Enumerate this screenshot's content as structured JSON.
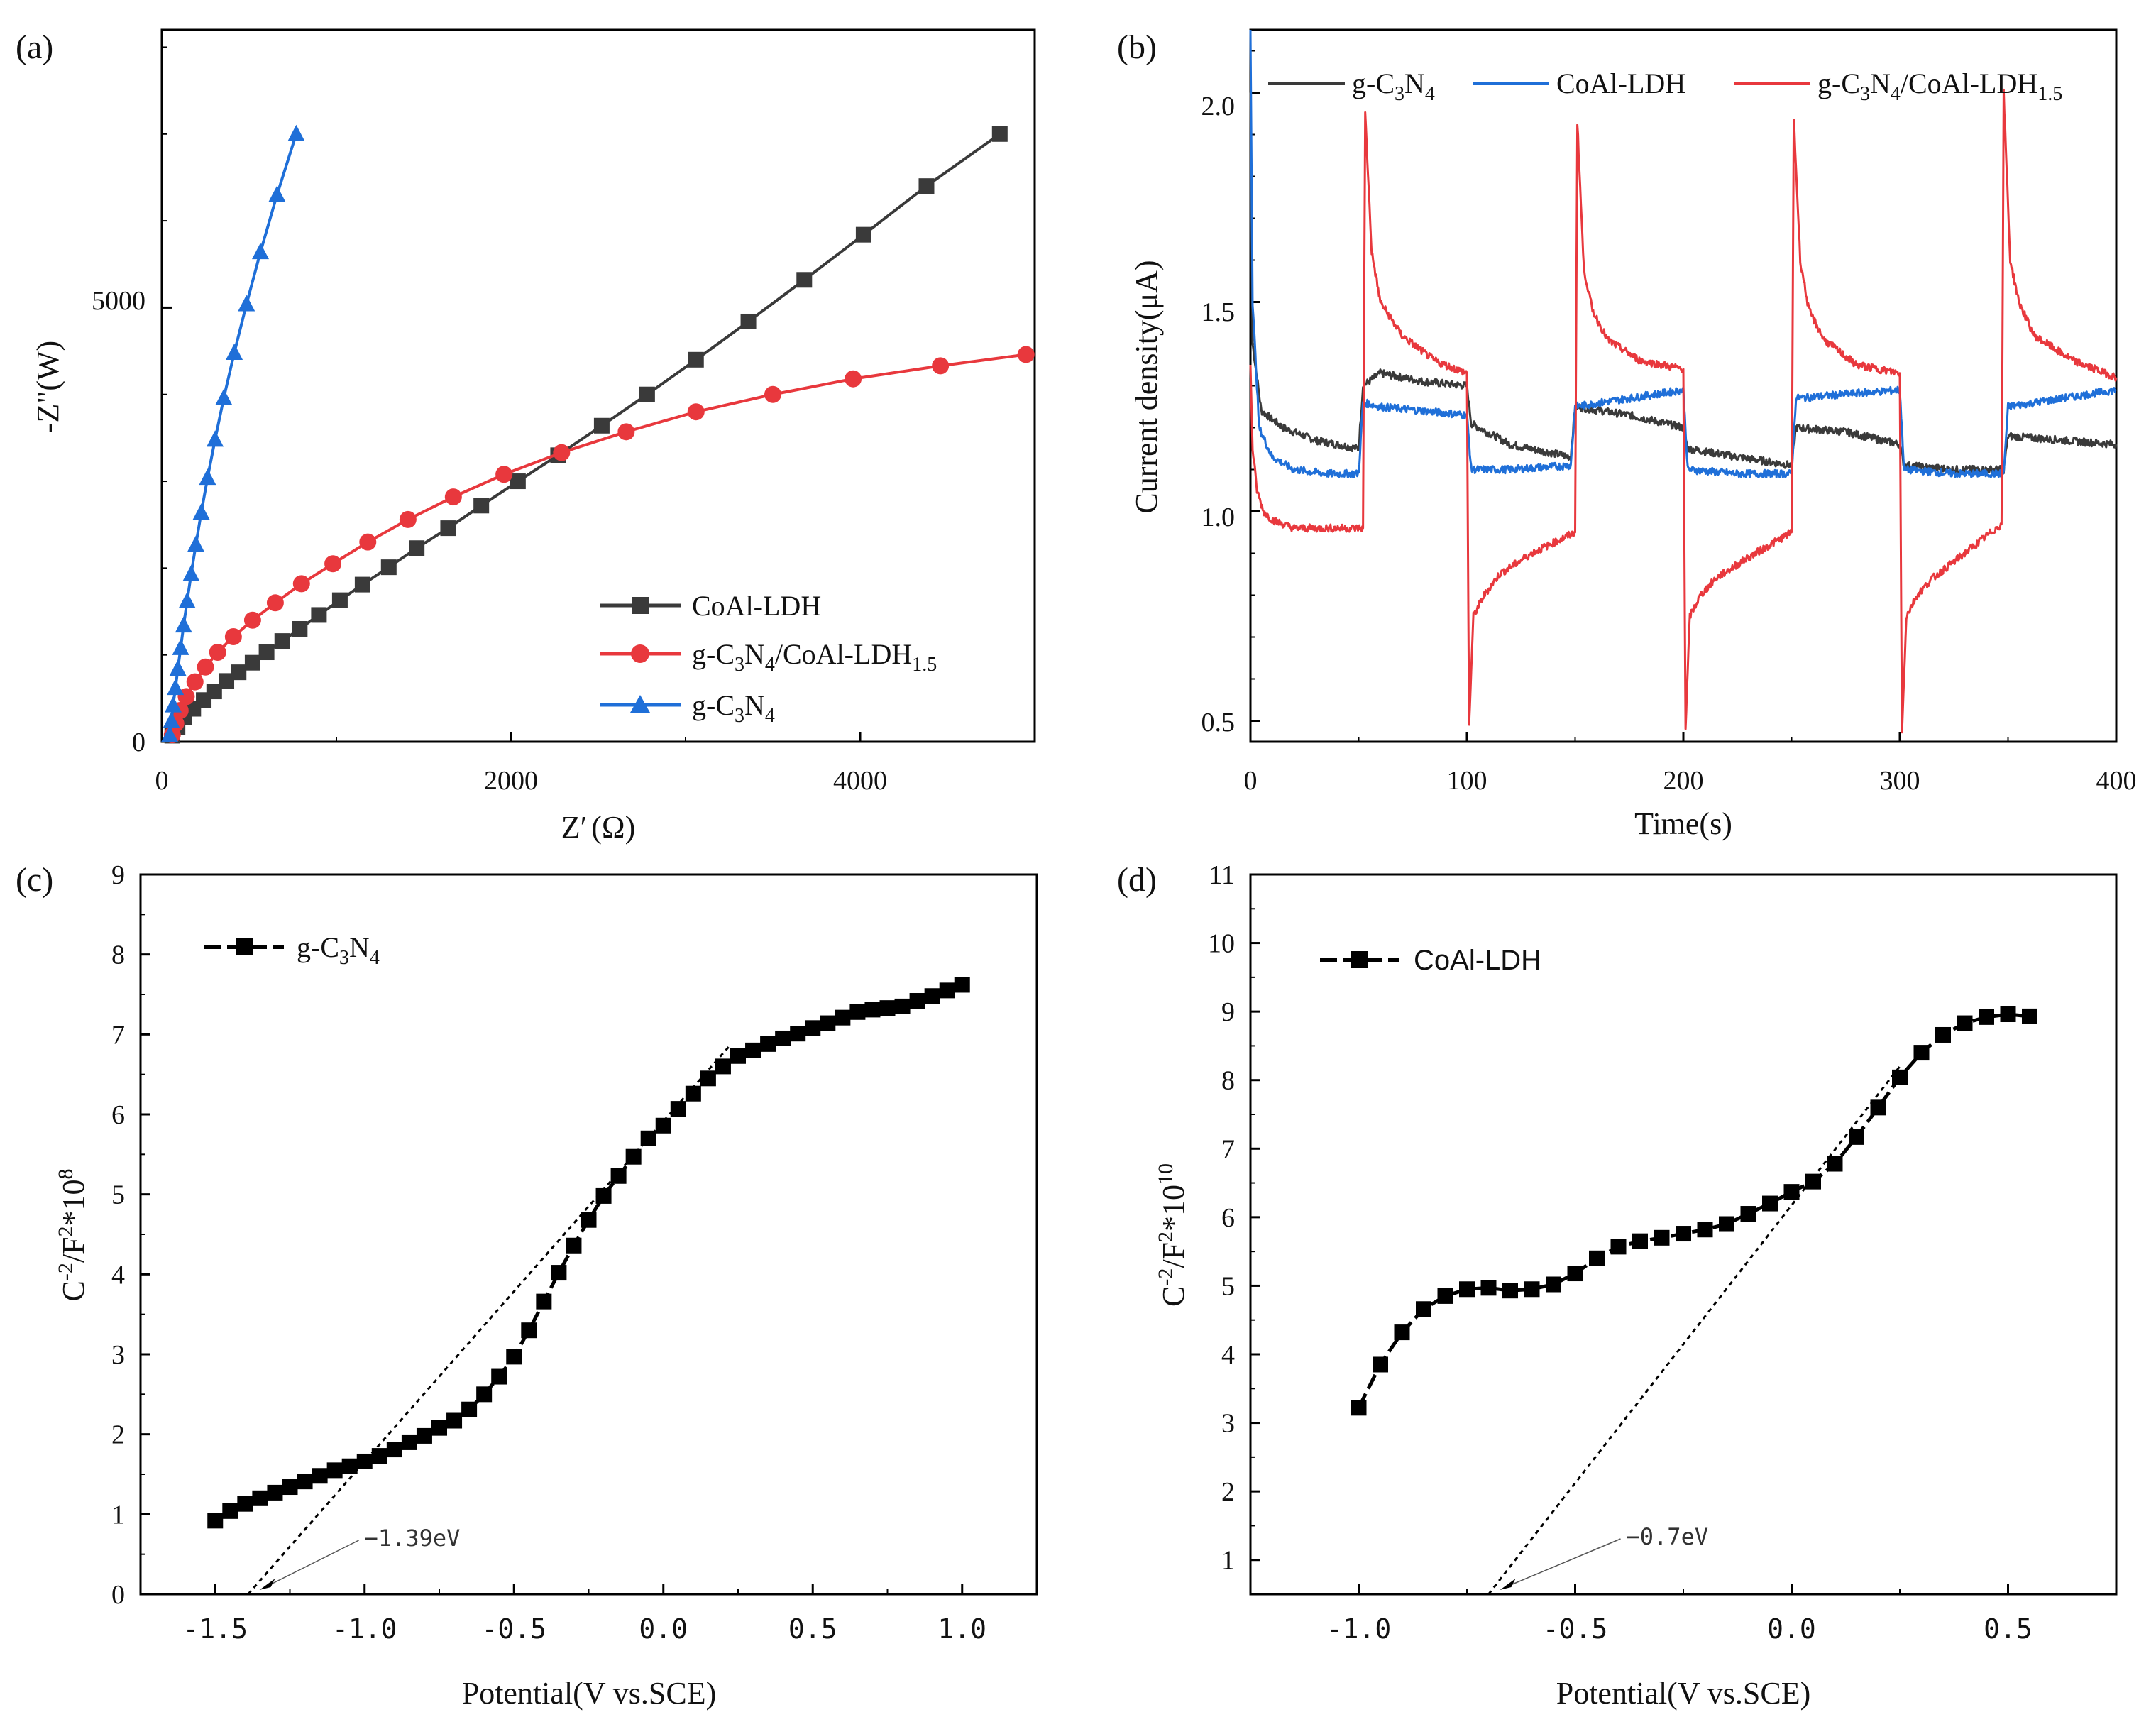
{
  "colors": {
    "black": "#3a3a3a",
    "red": "#e8383d",
    "blue": "#1f6fd8",
    "marker_black": "#000000"
  },
  "chart_data": [
    {
      "panel": "(a)",
      "type": "line",
      "xlabel": "Z′(Ω)",
      "ylabel": "-Z\"(W)",
      "xlim": [
        0,
        5000
      ],
      "ylim": [
        0,
        8200
      ],
      "xticks": [
        0,
        2000,
        4000
      ],
      "yticks": [
        0,
        5000
      ],
      "legend_position": "bottom-right",
      "series": [
        {
          "name": "CoAl-LDH",
          "color": "#3a3a3a",
          "marker": "square",
          "x": [
            60,
            90,
            130,
            180,
            240,
            300,
            370,
            440,
            520,
            600,
            690,
            790,
            900,
            1020,
            1150,
            1300,
            1460,
            1640,
            1830,
            2040,
            2270,
            2520,
            2780,
            3060,
            3360,
            3680,
            4020,
            4380,
            4800
          ],
          "y": [
            70,
            170,
            280,
            380,
            480,
            580,
            700,
            800,
            910,
            1030,
            1160,
            1300,
            1460,
            1630,
            1810,
            2010,
            2230,
            2460,
            2720,
            3000,
            3300,
            3640,
            4000,
            4400,
            4840,
            5320,
            5840,
            6400,
            7000
          ]
        },
        {
          "name": "g-C3N4/CoAl-LDH1.5",
          "color": "#e8383d",
          "marker": "circle",
          "x": [
            60,
            80,
            105,
            140,
            190,
            250,
            320,
            410,
            520,
            650,
            800,
            980,
            1180,
            1410,
            1670,
            1960,
            2290,
            2660,
            3060,
            3500,
            3960,
            4460,
            4950
          ],
          "y": [
            80,
            210,
            360,
            520,
            690,
            860,
            1030,
            1210,
            1400,
            1600,
            1820,
            2050,
            2300,
            2560,
            2820,
            3080,
            3330,
            3570,
            3800,
            4000,
            4180,
            4330,
            4460
          ]
        },
        {
          "name": "g-C3N4",
          "color": "#1f6fd8",
          "marker": "triangle",
          "x": [
            45,
            55,
            65,
            78,
            92,
            108,
            125,
            145,
            168,
            195,
            226,
            262,
            305,
            355,
            415,
            485,
            565,
            660,
            770
          ],
          "y": [
            80,
            240,
            420,
            620,
            840,
            1080,
            1340,
            1620,
            1930,
            2270,
            2640,
            3040,
            3480,
            3960,
            4480,
            5040,
            5640,
            6300,
            7000
          ]
        }
      ]
    },
    {
      "panel": "(b)",
      "type": "line",
      "xlabel": "Time(s)",
      "ylabel": "Current density(μA)",
      "xlim": [
        0,
        400
      ],
      "ylim": [
        0.45,
        2.15
      ],
      "xticks": [
        0,
        100,
        200,
        300,
        400
      ],
      "yticks": [
        0.5,
        1.0,
        1.5,
        2.0
      ],
      "legend_position": "top",
      "light_on_off_times": [
        52,
        100,
        150,
        200,
        250,
        300,
        348
      ],
      "series": [
        {
          "name": "g-C3N4",
          "color": "#3a3a3a",
          "x": [
            0,
            1,
            5,
            15,
            30,
            50,
            52,
            60,
            80,
            100,
            102,
            120,
            148,
            150,
            175,
            200,
            202,
            225,
            250,
            252,
            275,
            300,
            302,
            325,
            348,
            350,
            375,
            400
          ],
          "y": [
            2.0,
            1.4,
            1.24,
            1.2,
            1.17,
            1.15,
            1.3,
            1.33,
            1.31,
            1.3,
            1.21,
            1.16,
            1.13,
            1.25,
            1.23,
            1.2,
            1.15,
            1.13,
            1.11,
            1.2,
            1.19,
            1.16,
            1.11,
            1.1,
            1.1,
            1.18,
            1.17,
            1.16
          ]
        },
        {
          "name": "CoAl-LDH",
          "color": "#1f6fd8",
          "x": [
            0,
            1,
            4,
            10,
            20,
            35,
            50,
            52,
            60,
            80,
            100,
            102,
            120,
            148,
            150,
            175,
            200,
            202,
            225,
            250,
            252,
            275,
            300,
            302,
            325,
            348,
            350,
            375,
            400
          ],
          "y": [
            2.15,
            1.5,
            1.2,
            1.13,
            1.1,
            1.09,
            1.09,
            1.26,
            1.25,
            1.24,
            1.23,
            1.1,
            1.1,
            1.11,
            1.25,
            1.27,
            1.29,
            1.1,
            1.09,
            1.09,
            1.27,
            1.28,
            1.29,
            1.1,
            1.09,
            1.09,
            1.25,
            1.27,
            1.29
          ]
        },
        {
          "name": "g-C3N4/CoAl-LDH1.5",
          "color": "#e8383d",
          "x": [
            0,
            1,
            3,
            6,
            10,
            20,
            52,
            53,
            56,
            60,
            70,
            85,
            100,
            101,
            103,
            108,
            115,
            130,
            150,
            151,
            154,
            158,
            165,
            180,
            200,
            201,
            203,
            208,
            215,
            230,
            250,
            251,
            254,
            258,
            265,
            280,
            300,
            301,
            303,
            308,
            315,
            330,
            347,
            348,
            351,
            355,
            362,
            380,
            400
          ],
          "y": [
            1.35,
            1.15,
            1.05,
            1.0,
            0.98,
            0.96,
            0.96,
            1.95,
            1.62,
            1.5,
            1.42,
            1.36,
            1.33,
            0.49,
            0.75,
            0.8,
            0.85,
            0.9,
            0.95,
            1.93,
            1.58,
            1.48,
            1.41,
            1.36,
            1.34,
            0.48,
            0.75,
            0.8,
            0.84,
            0.89,
            0.95,
            1.94,
            1.6,
            1.48,
            1.41,
            1.35,
            1.33,
            0.47,
            0.75,
            0.8,
            0.84,
            0.9,
            0.97,
            2.0,
            1.6,
            1.5,
            1.42,
            1.36,
            1.32
          ]
        }
      ]
    },
    {
      "panel": "(c)",
      "type": "scatter",
      "xlabel": "Potential(V vs.SCE)",
      "ylabel_main": "C",
      "ylabel_sup1": "-2",
      "ylabel_mid": "/F",
      "ylabel_sup2": "2",
      "ylabel_end": "*10",
      "ylabel_sup3": "8",
      "xlim": [
        -1.75,
        1.25
      ],
      "ylim": [
        0,
        9
      ],
      "xticks": [
        -1.5,
        -1.0,
        -0.5,
        0.0,
        0.5,
        1.0
      ],
      "xtick_labels": [
        "-1.5",
        "-1.0",
        "-0.5",
        "0.0",
        "0.5",
        "1.0"
      ],
      "yticks": [
        0,
        1,
        2,
        3,
        4,
        5,
        6,
        7,
        8,
        9
      ],
      "legend_position": "top-left",
      "series": [
        {
          "name": "g-C3N4",
          "color": "#000000",
          "marker": "square",
          "x": [
            -1.5,
            -1.45,
            -1.4,
            -1.35,
            -1.3,
            -1.25,
            -1.2,
            -1.15,
            -1.1,
            -1.05,
            -1.0,
            -0.95,
            -0.9,
            -0.85,
            -0.8,
            -0.75,
            -0.7,
            -0.65,
            -0.6,
            -0.55,
            -0.5,
            -0.45,
            -0.4,
            -0.35,
            -0.3,
            -0.25,
            -0.2,
            -0.15,
            -0.1,
            -0.05,
            0.0,
            0.05,
            0.1,
            0.15,
            0.2,
            0.25,
            0.3,
            0.35,
            0.4,
            0.45,
            0.5,
            0.55,
            0.6,
            0.65,
            0.7,
            0.75,
            0.8,
            0.85,
            0.9,
            0.95,
            1.0
          ],
          "y": [
            0.92,
            1.04,
            1.13,
            1.2,
            1.27,
            1.34,
            1.41,
            1.48,
            1.55,
            1.6,
            1.66,
            1.73,
            1.81,
            1.9,
            1.98,
            2.08,
            2.17,
            2.31,
            2.5,
            2.72,
            2.97,
            3.3,
            3.66,
            4.02,
            4.36,
            4.68,
            4.98,
            5.23,
            5.47,
            5.7,
            5.86,
            6.07,
            6.26,
            6.45,
            6.6,
            6.73,
            6.8,
            6.88,
            6.95,
            7.01,
            7.08,
            7.14,
            7.21,
            7.28,
            7.31,
            7.33,
            7.35,
            7.42,
            7.48,
            7.55,
            7.62
          ]
        }
      ],
      "tangent": {
        "x": [
          -1.39,
          0.22
        ],
        "y": [
          0,
          6.85
        ]
      },
      "annotation": {
        "text": "−1.39eV",
        "x": -1.39,
        "y": 0
      }
    },
    {
      "panel": "(d)",
      "type": "scatter",
      "xlabel": "Potential(V vs.SCE)",
      "ylabel_main": "C",
      "ylabel_sup1": "-2",
      "ylabel_mid": "/F",
      "ylabel_sup2": "2",
      "ylabel_end": "*10",
      "ylabel_sup3": "10",
      "xlim": [
        -1.25,
        0.75
      ],
      "ylim": [
        0.5,
        11
      ],
      "xticks": [
        -1.0,
        -0.5,
        0.0,
        0.5
      ],
      "xtick_labels": [
        "-1.0",
        "-0.5",
        "0.0",
        "0.5"
      ],
      "yticks": [
        1,
        2,
        3,
        4,
        5,
        6,
        7,
        8,
        9,
        10,
        11
      ],
      "legend_position": "top-left",
      "series": [
        {
          "name": "CoAl-LDH",
          "color": "#000000",
          "marker": "square",
          "x": [
            -1.0,
            -0.95,
            -0.9,
            -0.85,
            -0.8,
            -0.75,
            -0.7,
            -0.65,
            -0.6,
            -0.55,
            -0.5,
            -0.45,
            -0.4,
            -0.35,
            -0.3,
            -0.25,
            -0.2,
            -0.15,
            -0.1,
            -0.05,
            0.0,
            0.05,
            0.1,
            0.15,
            0.2,
            0.25,
            0.3,
            0.35,
            0.4,
            0.45,
            0.5,
            0.55
          ],
          "y": [
            3.22,
            3.85,
            4.32,
            4.66,
            4.85,
            4.95,
            4.97,
            4.93,
            4.95,
            5.02,
            5.18,
            5.4,
            5.57,
            5.65,
            5.7,
            5.76,
            5.82,
            5.9,
            6.05,
            6.2,
            6.37,
            6.52,
            6.78,
            7.17,
            7.6,
            8.04,
            8.4,
            8.66,
            8.83,
            8.92,
            8.96,
            8.93
          ]
        }
      ],
      "tangent": {
        "x": [
          -0.7,
          0.25
        ],
        "y": [
          0.5,
          8.2
        ]
      },
      "annotation": {
        "text": "−0.7eV",
        "x": -0.7,
        "y": 0.5
      }
    }
  ],
  "labels": {
    "a": {
      "panel": "(a)",
      "xlabel_main": "Z′",
      "xlabel_unit": "(Ω)",
      "ylabel": "-Z\"(W)",
      "ticks_x": [
        "0",
        "2000",
        "4000"
      ],
      "ticks_y": [
        "0",
        "5000"
      ],
      "legend": [
        {
          "pre": "CoAl-LDH"
        },
        {
          "p1": "g-C",
          "s1": "3",
          "p2": "N",
          "s2": "4",
          "p3": "/CoAl-LDH",
          "s3": "1.5"
        },
        {
          "p1": "g-C",
          "s1": "3",
          "p2": "N",
          "s2": "4"
        }
      ]
    },
    "b": {
      "panel": "(b)",
      "xlabel": "Time(s)",
      "ylabel": "Current density(μA)",
      "ticks_x": [
        "0",
        "100",
        "200",
        "300",
        "400"
      ],
      "ticks_y": [
        "0.5",
        "1.0",
        "1.5",
        "2.0"
      ],
      "legend": [
        {
          "p1": "g-C",
          "s1": "3",
          "p2": "N",
          "s2": "4"
        },
        {
          "pre": "CoAl-LDH"
        },
        {
          "p1": "g-C",
          "s1": "3",
          "p2": "N",
          "s2": "4",
          "p3": "/CoAl-LDH",
          "s3": "1.5"
        }
      ]
    },
    "c": {
      "panel": "(c)",
      "xlabel": "Potential(V vs.SCE)",
      "ticks_y": [
        "0",
        "1",
        "2",
        "3",
        "4",
        "5",
        "6",
        "7",
        "8",
        "9"
      ],
      "legend": {
        "p1": "g-C",
        "s1": "3",
        "p2": "N",
        "s2": "4"
      }
    },
    "d": {
      "panel": "(d)",
      "xlabel": "Potential(V vs.SCE)",
      "ticks_y": [
        "1",
        "2",
        "3",
        "4",
        "5",
        "6",
        "7",
        "8",
        "9",
        "10",
        "11"
      ],
      "legend": {
        "pre": "CoAl-LDH"
      }
    }
  }
}
